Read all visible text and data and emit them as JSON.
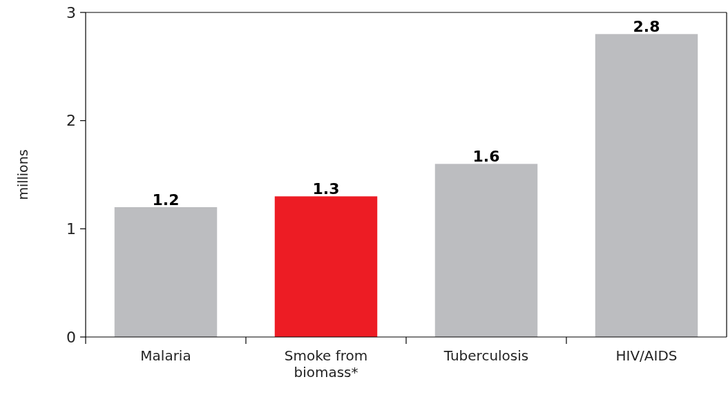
{
  "chart_data": {
    "type": "bar",
    "ylabel": "millions",
    "categories": [
      "Malaria",
      "Smoke from biomass*",
      "Tuberculosis",
      "HIV/AIDS"
    ],
    "values": [
      1.2,
      1.3,
      1.6,
      2.8
    ],
    "colors": [
      "#bcbdc0",
      "#ed1c24",
      "#bcbdc0",
      "#bcbdc0"
    ],
    "ylim": [
      0,
      3
    ],
    "yticks": [
      0,
      1,
      2,
      3
    ],
    "data_labels": true,
    "grid": false
  }
}
